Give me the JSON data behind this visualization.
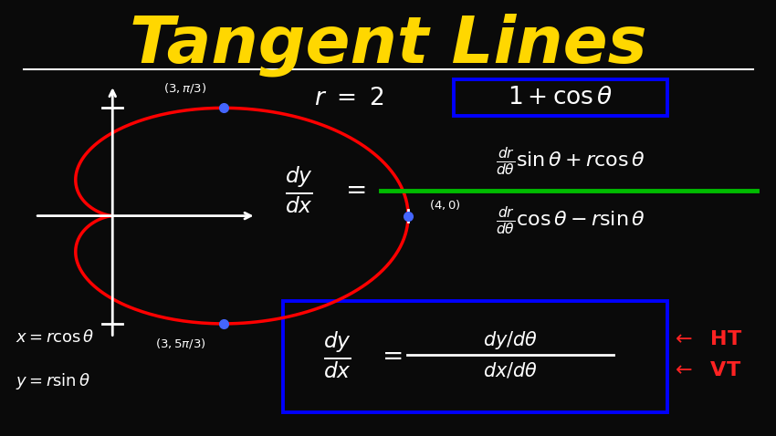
{
  "background_color": "#0a0a0a",
  "title": "Tangent Lines",
  "title_color": "#FFD700",
  "title_fontsize": 52,
  "separator_color": "white",
  "curve_color": "red",
  "axis_color": "white",
  "point_color": "#4466FF",
  "bracket_color": "#0000FF",
  "green_line_color": "#00BB00",
  "box_color": "#0000FF",
  "ht_vt_color": "#FF2222",
  "text_color": "white"
}
